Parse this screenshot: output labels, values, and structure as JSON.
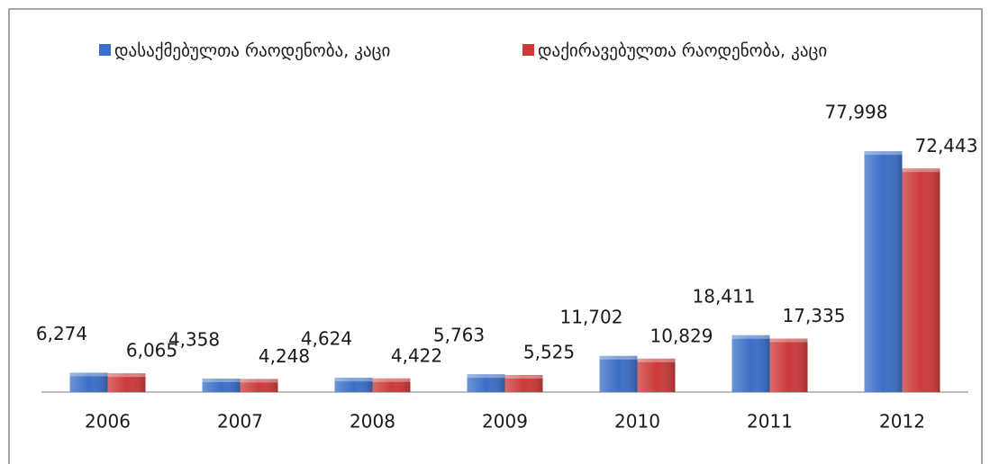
{
  "chart_data": {
    "type": "bar",
    "categories": [
      "2006",
      "2007",
      "2008",
      "2009",
      "2010",
      "2011",
      "2012"
    ],
    "series": [
      {
        "name": "დასაქმებულთა რაოდენობა, კაცი",
        "color": "#3b6fc6",
        "values": [
          6274,
          4358,
          4624,
          5763,
          11702,
          18411,
          77998
        ],
        "value_labels": [
          "6,274",
          "4,358",
          "4,624",
          "5,763",
          "11,702",
          "18,411",
          "77,998"
        ]
      },
      {
        "name": "დაქირავებულთა რაოდენობა, კაცი",
        "color": "#cc3a3a",
        "values": [
          6065,
          4248,
          4422,
          5525,
          10829,
          17335,
          72443
        ],
        "value_labels": [
          "6,065",
          "4,248",
          "4,422",
          "5,525",
          "10,829",
          "17,335",
          "72,443"
        ]
      }
    ],
    "ylim": [
      0,
      90000
    ],
    "legend": "top"
  }
}
